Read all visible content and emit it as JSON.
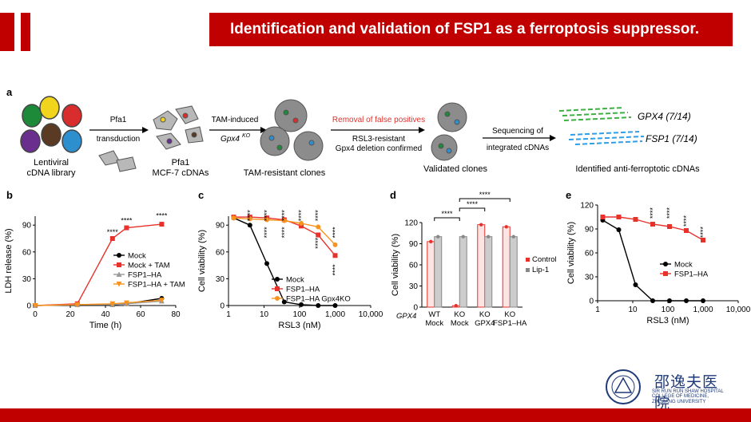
{
  "slide": {
    "title": "Identification and validation of FSP1 as a ferroptosis suppressor.",
    "accent": "#c00000"
  },
  "logo": {
    "name_cn": "邵逸夫医院",
    "name_en_lines": [
      "SIR RUN RUN SHAW HOSPITAL",
      "COLLEGE OF MEDICINE,",
      "ZHEJIANG UNIVERSITY"
    ]
  },
  "panel_a": {
    "label": "a",
    "lib_label1": "Lentiviral",
    "lib_label2": "cDNA library",
    "arrow1_top": "Pfa1",
    "arrow1_bottom": "transduction",
    "cells_label1": "Pfa1",
    "cells_label2": "MCF-7 cDNAs",
    "arrow2_top": "TAM-induced",
    "arrow2_bottom": "Gpx4",
    "arrow2_bottom_sup": "KO",
    "clones_label": "TAM-resistant clones",
    "arrow3_top": "Removal of false positives",
    "arrow3_mid": "RSL3-resistant",
    "arrow3_bottom": "Gpx4 deletion confirmed",
    "validated_label": "Validated clones",
    "arrow4_top": "Sequencing of",
    "arrow4_bottom": "integrated cDNAs",
    "hit1": "GPX4 (7/14)",
    "hit2": "FSP1 (7/14)",
    "identified_label": "Identified anti-ferroptotic cDNAs",
    "red_text": "#e0322d"
  },
  "chart_data": [
    {
      "panel": "b",
      "type": "line",
      "xlabel": "Time (h)",
      "ylabel": "LDH release (%)",
      "xlim": [
        0,
        80
      ],
      "ylim": [
        0,
        100
      ],
      "xticks": [
        "0",
        "20",
        "40",
        "60",
        "80"
      ],
      "yticks": [
        "0",
        "30",
        "60",
        "90"
      ],
      "annotations": [
        {
          "x": 44,
          "y": 76,
          "text": "****"
        },
        {
          "x": 52,
          "y": 89,
          "text": "****"
        },
        {
          "x": 72,
          "y": 94,
          "text": "****"
        }
      ],
      "series": [
        {
          "name": "Mock",
          "color": "#000000",
          "marker": "circle",
          "x": [
            0,
            24,
            44,
            52,
            72
          ],
          "y": [
            0,
            1,
            1,
            2,
            8
          ]
        },
        {
          "name": "Mock + TAM",
          "color": "#e8312b",
          "marker": "square",
          "x": [
            0,
            24,
            44,
            52,
            72
          ],
          "y": [
            0,
            2,
            75,
            87,
            91
          ]
        },
        {
          "name": "FSP1–HA",
          "color": "#999999",
          "marker": "triangle",
          "x": [
            0,
            24,
            44,
            52,
            72
          ],
          "y": [
            0,
            1,
            1,
            2,
            5
          ]
        },
        {
          "name": "FSP1–HA + TAM",
          "color": "#f7931e",
          "marker": "triangle-down",
          "x": [
            0,
            24,
            44,
            52,
            72
          ],
          "y": [
            0,
            1,
            2,
            3,
            6
          ]
        }
      ]
    },
    {
      "panel": "c",
      "type": "line",
      "xscale": "log",
      "xlabel": "RSL3 (nM)",
      "ylabel": "Cell viability (%)",
      "xlim": [
        1,
        10000
      ],
      "ylim": [
        0,
        100
      ],
      "xticks": [
        "1",
        "10",
        "100",
        "1,000",
        "10,000"
      ],
      "yticks": [
        "0",
        "30",
        "60",
        "90"
      ],
      "annotations": [
        {
          "x": 4,
          "y": 99,
          "text": "****"
        },
        {
          "x": 12,
          "y": 99,
          "text": "****"
        },
        {
          "x": 12,
          "y": 80,
          "text": "****"
        },
        {
          "x": 37,
          "y": 99,
          "text": "****"
        },
        {
          "x": 37,
          "y": 80,
          "text": "****"
        },
        {
          "x": 111,
          "y": 99,
          "text": "****"
        },
        {
          "x": 333,
          "y": 99,
          "text": "****"
        },
        {
          "x": 333,
          "y": 68,
          "text": "****"
        },
        {
          "x": 1000,
          "y": 80,
          "text": "****"
        },
        {
          "x": 1000,
          "y": 38,
          "text": "****"
        }
      ],
      "series": [
        {
          "name": "Mock",
          "color": "#000000",
          "marker": "circle",
          "x": [
            1.4,
            4,
            12,
            37,
            111,
            333,
            1000
          ],
          "y": [
            98,
            90,
            47,
            4,
            1,
            0,
            0
          ]
        },
        {
          "name": "FSP1–HA",
          "color": "#e8312b",
          "marker": "square",
          "x": [
            1.4,
            4,
            12,
            37,
            111,
            333,
            1000
          ],
          "y": [
            99,
            99,
            98,
            96,
            89,
            79,
            56
          ]
        },
        {
          "name": "FSP1–HA Gpx4KO",
          "color": "#f7931e",
          "marker": "circle",
          "x": [
            1.4,
            4,
            12,
            37,
            111,
            333,
            1000
          ],
          "y": [
            98,
            97,
            96,
            95,
            92,
            88,
            68
          ]
        }
      ]
    },
    {
      "panel": "d",
      "type": "bar",
      "ylabel": "Cell viability (%)",
      "ylim": [
        0,
        120
      ],
      "yticks": [
        "0",
        "30",
        "60",
        "90",
        "120"
      ],
      "row_label": "GPX4",
      "categories": [
        "WT Mock",
        "KO Mock",
        "KO GPX4",
        "KO FSP1–HA"
      ],
      "category_lines": [
        [
          "WT",
          "Mock"
        ],
        [
          "KO",
          "Mock"
        ],
        [
          "KO",
          "GPX4"
        ],
        [
          "KO",
          "FSP1–HA"
        ]
      ],
      "series": [
        {
          "name": "Control",
          "color": "#e8312b",
          "values": [
            93,
            2,
            117,
            114
          ]
        },
        {
          "name": "Lip-1",
          "color": "#888888",
          "values": [
            100,
            100,
            100,
            100
          ]
        }
      ],
      "significance": [
        {
          "from": "WT Mock",
          "to": "KO Mock",
          "text": "****"
        },
        {
          "from": "KO Mock",
          "to": "KO GPX4",
          "text": "****"
        },
        {
          "from": "KO Mock",
          "to": "KO FSP1–HA",
          "text": "****"
        }
      ]
    },
    {
      "panel": "e",
      "type": "line",
      "xscale": "log",
      "xlabel": "RSL3 (nM)",
      "ylabel": "Cell viability (%)",
      "xlim": [
        1,
        10000
      ],
      "ylim": [
        0,
        120
      ],
      "xticks": [
        "1",
        "10",
        "100",
        "1,000",
        "10,000"
      ],
      "yticks": [
        "0",
        "30",
        "60",
        "90",
        "120"
      ],
      "annotations": [
        {
          "x": 37,
          "y": 108,
          "text": "****"
        },
        {
          "x": 111,
          "y": 108,
          "text": "****"
        },
        {
          "x": 333,
          "y": 98,
          "text": "****"
        },
        {
          "x": 1000,
          "y": 84,
          "text": "****"
        }
      ],
      "series": [
        {
          "name": "Mock",
          "color": "#000000",
          "marker": "circle",
          "x": [
            1.4,
            4,
            12,
            37,
            111,
            333,
            1000
          ],
          "y": [
            101,
            89,
            20,
            0,
            0,
            0,
            0
          ]
        },
        {
          "name": "FSP1–HA",
          "color": "#e8312b",
          "marker": "square",
          "x": [
            1.4,
            4,
            12,
            37,
            111,
            333,
            1000
          ],
          "y": [
            105,
            105,
            102,
            96,
            93,
            88,
            76
          ]
        }
      ]
    }
  ]
}
